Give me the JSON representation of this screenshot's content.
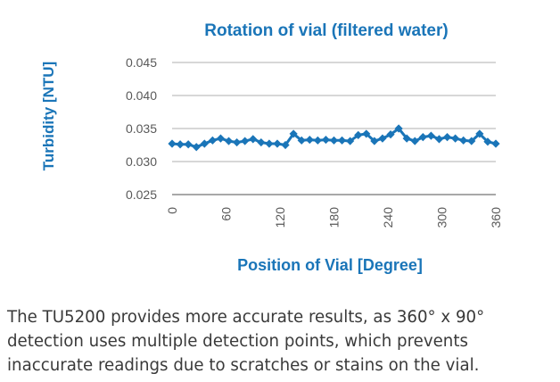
{
  "chart_data": {
    "type": "line",
    "title": "Rotation of vial (filtered water)",
    "xlabel": "Position of Vial [Degree]",
    "ylabel": "Turbidity [NTU]",
    "xlim": [
      0,
      360
    ],
    "ylim": [
      0.025,
      0.045
    ],
    "x_ticks": [
      "0",
      "60",
      "120",
      "180",
      "240",
      "300",
      "360"
    ],
    "y_ticks": [
      "0.025",
      "0.030",
      "0.035",
      "0.040",
      "0.045"
    ],
    "grid": "horizontal",
    "legend": "none",
    "series": [
      {
        "color": "#1a75b8",
        "marker": "diamond",
        "x": [
          0,
          9,
          18,
          27,
          36,
          45,
          54,
          63,
          72,
          81,
          90,
          99,
          108,
          117,
          126,
          135,
          144,
          153,
          162,
          171,
          180,
          189,
          198,
          207,
          216,
          225,
          234,
          243,
          252,
          261,
          270,
          279,
          288,
          297,
          306,
          315,
          324,
          333,
          342,
          351,
          360
        ],
        "y": [
          0.0327,
          0.0326,
          0.0326,
          0.0322,
          0.0327,
          0.0332,
          0.0335,
          0.0331,
          0.0329,
          0.0331,
          0.0334,
          0.0329,
          0.0327,
          0.0327,
          0.0325,
          0.0342,
          0.0332,
          0.0333,
          0.0332,
          0.0333,
          0.0332,
          0.0332,
          0.0331,
          0.034,
          0.0342,
          0.0331,
          0.0335,
          0.0341,
          0.035,
          0.0335,
          0.0331,
          0.0337,
          0.0339,
          0.0334,
          0.0337,
          0.0335,
          0.0332,
          0.0331,
          0.0342,
          0.033,
          0.0327
        ]
      }
    ]
  },
  "caption": {
    "lines": [
      "The TU5200 provides more accurate results, as 360° x 90°",
      "detection uses multiple detection points, which prevents",
      "inaccurate readings due to scratches or stains on the vial."
    ]
  }
}
